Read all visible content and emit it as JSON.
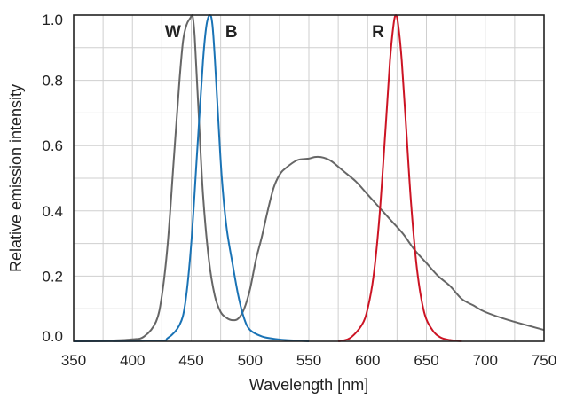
{
  "chart_data": {
    "type": "line",
    "xlabel": "Wavelength [nm]",
    "ylabel": "Relative emission intensity",
    "xlim": [
      350,
      750
    ],
    "ylim": [
      0,
      1.0
    ],
    "x_ticks": [
      350,
      400,
      450,
      500,
      550,
      600,
      650,
      700,
      750
    ],
    "x_tick_labels": [
      "350",
      "400",
      "450",
      "500",
      "550",
      "600",
      "650",
      "700",
      "750"
    ],
    "y_ticks": [
      0,
      0.2,
      0.4,
      0.6,
      0.8,
      1.0
    ],
    "y_tick_labels": [
      "0.0",
      "0.2",
      "0.4",
      "0.6",
      "0.8",
      "1.0"
    ],
    "grid": true,
    "series": [
      {
        "name": "W",
        "color": "#666666",
        "x": [
          350,
          380,
          400,
          410,
          420,
          425,
          430,
          435,
          440,
          443,
          446,
          449,
          451,
          453,
          456,
          460,
          465,
          470,
          475,
          480,
          485,
          490,
          495,
          500,
          505,
          510,
          515,
          520,
          525,
          530,
          540,
          550,
          555,
          560,
          565,
          570,
          580,
          590,
          600,
          610,
          620,
          630,
          640,
          650,
          660,
          670,
          680,
          690,
          700,
          720,
          750
        ],
        "y": [
          0.0,
          0.002,
          0.006,
          0.015,
          0.06,
          0.14,
          0.3,
          0.55,
          0.8,
          0.92,
          0.97,
          0.99,
          1.0,
          0.93,
          0.72,
          0.45,
          0.25,
          0.14,
          0.09,
          0.072,
          0.065,
          0.07,
          0.1,
          0.16,
          0.25,
          0.32,
          0.4,
          0.47,
          0.51,
          0.53,
          0.555,
          0.56,
          0.565,
          0.565,
          0.56,
          0.55,
          0.52,
          0.49,
          0.45,
          0.41,
          0.37,
          0.33,
          0.28,
          0.24,
          0.2,
          0.17,
          0.13,
          0.11,
          0.09,
          0.065,
          0.035
        ]
      },
      {
        "name": "B",
        "color": "#1a73b5",
        "x": [
          350,
          420,
          430,
          440,
          445,
          450,
          455,
          460,
          463,
          466,
          468,
          470,
          473,
          476,
          480,
          485,
          490,
          495,
          500,
          510,
          520,
          530,
          540,
          550
        ],
        "y": [
          0.0,
          0.002,
          0.01,
          0.05,
          0.12,
          0.3,
          0.58,
          0.86,
          0.97,
          1.0,
          0.97,
          0.87,
          0.68,
          0.5,
          0.35,
          0.24,
          0.14,
          0.07,
          0.035,
          0.015,
          0.008,
          0.004,
          0.002,
          0.0
        ]
      },
      {
        "name": "R",
        "color": "#cc1424",
        "x": [
          575,
          585,
          595,
          600,
          605,
          610,
          615,
          619,
          622,
          624,
          626,
          629,
          633,
          637,
          642,
          648,
          655,
          662,
          670,
          680
        ],
        "y": [
          0.0,
          0.01,
          0.05,
          0.1,
          0.2,
          0.38,
          0.64,
          0.86,
          0.97,
          1.0,
          0.97,
          0.86,
          0.64,
          0.42,
          0.22,
          0.09,
          0.035,
          0.012,
          0.004,
          0.0
        ]
      }
    ]
  }
}
